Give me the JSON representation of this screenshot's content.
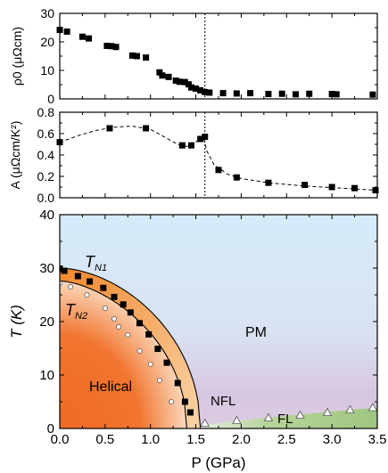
{
  "chart_data": [
    {
      "type": "scatter",
      "panel": "top",
      "ylabel": "ρ0 (μΩcm)",
      "ylim": [
        0,
        30
      ],
      "xlim": [
        0,
        3.5
      ],
      "yticks": [
        "0",
        "10",
        "20",
        "30"
      ],
      "vline_x": 1.6,
      "series": [
        {
          "x": [
            0.0,
            0.08,
            0.25,
            0.32,
            0.52,
            0.57,
            0.62,
            0.8,
            0.85,
            0.95,
            1.1,
            1.13,
            1.2,
            1.28,
            1.32,
            1.38,
            1.42,
            1.45,
            1.5,
            1.55,
            1.6,
            1.65,
            1.8,
            1.95,
            2.1,
            2.3,
            2.45,
            2.6,
            2.75,
            3.0,
            3.05,
            3.45
          ],
          "y": [
            24.2,
            23.6,
            21.8,
            21.2,
            18.6,
            18.5,
            18.2,
            15.2,
            15.0,
            14.5,
            9.3,
            8.2,
            7.7,
            6.4,
            6.0,
            5.9,
            5.1,
            4.0,
            3.6,
            3.0,
            2.4,
            2.2,
            2.0,
            1.9,
            2.0,
            1.7,
            1.8,
            1.6,
            1.8,
            1.7,
            1.6,
            1.5
          ]
        }
      ]
    },
    {
      "type": "line",
      "panel": "middle",
      "ylabel": "A (μΩcm/K²)",
      "ylim": [
        0,
        0.8
      ],
      "xlim": [
        0,
        3.5
      ],
      "yticks": [
        "0.0",
        "0.2",
        "0.4",
        "0.6",
        "0.8"
      ],
      "vline_x": 1.6,
      "series": [
        {
          "x": [
            0.0,
            0.55,
            0.95,
            1.35,
            1.45,
            1.55,
            1.6,
            1.75,
            1.95,
            2.3,
            2.7,
            3.0,
            3.25,
            3.48
          ],
          "y": [
            0.52,
            0.65,
            0.65,
            0.49,
            0.49,
            0.55,
            0.57,
            0.26,
            0.19,
            0.14,
            0.12,
            0.1,
            0.09,
            0.07
          ]
        }
      ],
      "fit_curve": {
        "x": [
          0.0,
          0.2,
          0.4,
          0.6,
          0.8,
          1.0,
          1.15,
          1.3,
          1.4,
          1.5,
          1.58,
          1.62,
          1.7,
          1.85,
          2.0,
          2.3,
          2.7,
          3.1,
          3.5
        ],
        "y": [
          0.52,
          0.58,
          0.63,
          0.66,
          0.67,
          0.64,
          0.57,
          0.5,
          0.48,
          0.52,
          0.58,
          0.44,
          0.31,
          0.22,
          0.18,
          0.14,
          0.11,
          0.09,
          0.07
        ]
      }
    },
    {
      "type": "scatter",
      "panel": "bottom",
      "ylabel": "T (K)",
      "xlabel": "P (GPa)",
      "ylim": [
        0,
        40
      ],
      "xlim": [
        0,
        3.5
      ],
      "xticks": [
        "0.0",
        "0.5",
        "1.0",
        "1.5",
        "2.0",
        "2.5",
        "3.0",
        "3.5"
      ],
      "yticks": [
        "0",
        "10",
        "20",
        "30",
        "40"
      ],
      "series": [
        {
          "name": "T_N1",
          "x": [
            0.0,
            0.05,
            0.2,
            0.33,
            0.48,
            0.6,
            0.7,
            0.78,
            0.88,
            0.98,
            1.08,
            1.18,
            1.3,
            1.38,
            1.44
          ],
          "y": [
            29.9,
            29.5,
            28.5,
            27.5,
            26.3,
            24.6,
            23.2,
            21.7,
            19.7,
            17.6,
            14.9,
            12.3,
            8.5,
            5.0,
            3.0
          ]
        },
        {
          "name": "T_N2",
          "x": [
            0.0,
            0.12,
            0.3,
            0.5,
            0.6,
            0.65,
            0.75,
            0.88,
            1.0,
            1.1,
            1.23
          ],
          "y": [
            27.2,
            26.5,
            25.0,
            22.5,
            20.5,
            19.0,
            17.5,
            14.5,
            12.0,
            9.0,
            5.0
          ]
        },
        {
          "name": "FL",
          "x": [
            1.6,
            1.95,
            2.3,
            2.65,
            2.95,
            3.2,
            3.45
          ],
          "y": [
            1.0,
            1.5,
            2.0,
            2.5,
            3.0,
            3.5,
            3.9
          ]
        }
      ],
      "region_labels": {
        "helical": "Helical",
        "pm": "PM",
        "nfl": "NFL",
        "fl": "FL",
        "tn1_main": "T",
        "tn1_sub": "N1",
        "tn2_main": "T",
        "tn2_sub": "N2"
      }
    }
  ],
  "colors": {
    "helical": "#f07028",
    "orange_band": "#f6a648",
    "pm_blue": "#d8ecf8",
    "nfl_purple": "#d8c4dc",
    "fl_green": "#a9c98a"
  }
}
